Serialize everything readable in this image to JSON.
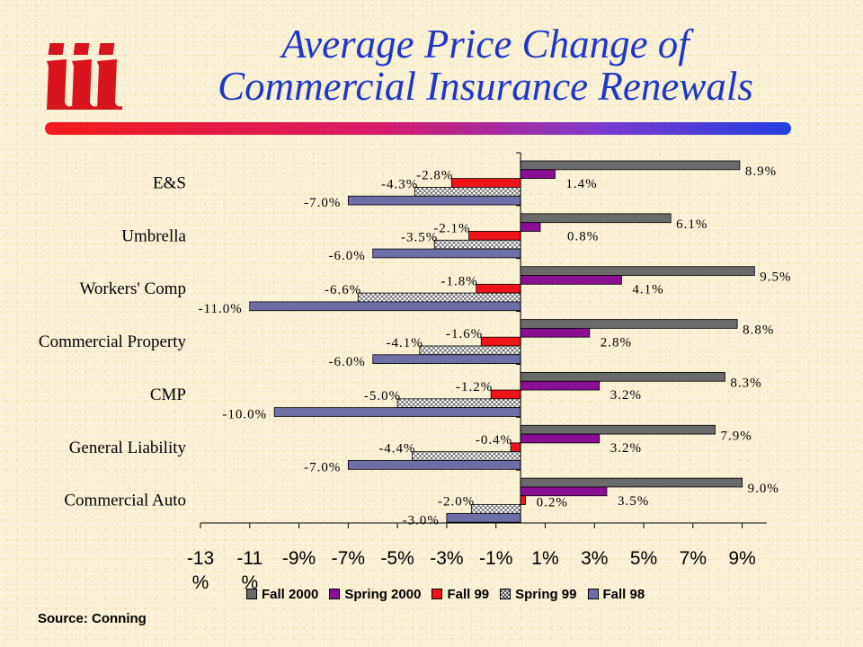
{
  "title": {
    "line1": "Average Price Change of",
    "line2": "Commercial Insurance Renewals"
  },
  "logo": {
    "text": "iii",
    "color": "#d8141e"
  },
  "source": "Source:  Conning",
  "chart_data": {
    "type": "bar",
    "orientation": "horizontal",
    "categories": [
      "E&S",
      "Umbrella",
      "Workers' Comp",
      "Commercial Property",
      "CMP",
      "General Liability",
      "Commercial Auto"
    ],
    "series": [
      {
        "name": "Fall 2000",
        "color": "#6a6a6a",
        "values": [
          8.9,
          6.1,
          9.5,
          8.8,
          8.3,
          7.9,
          9.0
        ],
        "labels": [
          "8.9%",
          "6.1%",
          "9.5%",
          "8.8%",
          "8.3%",
          "7.9%",
          "9.0%"
        ]
      },
      {
        "name": "Spring 2000",
        "color": "#8a0f93",
        "values": [
          1.4,
          0.8,
          4.1,
          2.8,
          3.2,
          3.2,
          3.5
        ],
        "labels": [
          "1.4%",
          "0.8%",
          "4.1%",
          "2.8%",
          "3.2%",
          "3.2%",
          "3.5%"
        ]
      },
      {
        "name": "Fall 99",
        "color": "#f0141a",
        "values": [
          -2.8,
          -2.1,
          -1.8,
          -1.6,
          -1.2,
          -0.4,
          0.2
        ],
        "labels": [
          "-2.8%",
          "-2.1%",
          "-1.8%",
          "-1.6%",
          "-1.2%",
          "-0.4%",
          "0.2%"
        ]
      },
      {
        "name": "Spring 99",
        "color": "#ffffff",
        "pattern": "crosshatch",
        "values": [
          -4.3,
          -3.5,
          -6.6,
          -4.1,
          -5.0,
          -4.4,
          -2.0
        ],
        "labels": [
          "-4.3%",
          "-3.5%",
          "-6.6%",
          "-4.1%",
          "-5.0%",
          "-4.4%",
          "-2.0%"
        ]
      },
      {
        "name": "Fall 98",
        "color": "#6f6fa8",
        "values": [
          -7.0,
          -6.0,
          -11.0,
          -6.0,
          -10.0,
          -7.0,
          -3.0
        ],
        "labels": [
          "-7.0%",
          "-6.0%",
          "-11.0%",
          "-6.0%",
          "-10.0%",
          "-7.0%",
          "-3.0%"
        ]
      }
    ],
    "xlim": [
      -13,
      10
    ],
    "xticks": [
      -13,
      -11,
      -9,
      -7,
      -5,
      -3,
      -1,
      1,
      3,
      5,
      7,
      9
    ],
    "xtick_labels": [
      "-13\n%",
      "-11\n%",
      "-9%",
      "-7%",
      "-5%",
      "-3%",
      "-1%",
      "1%",
      "3%",
      "5%",
      "7%",
      "9%"
    ],
    "legend": "bottom",
    "grid": false
  }
}
